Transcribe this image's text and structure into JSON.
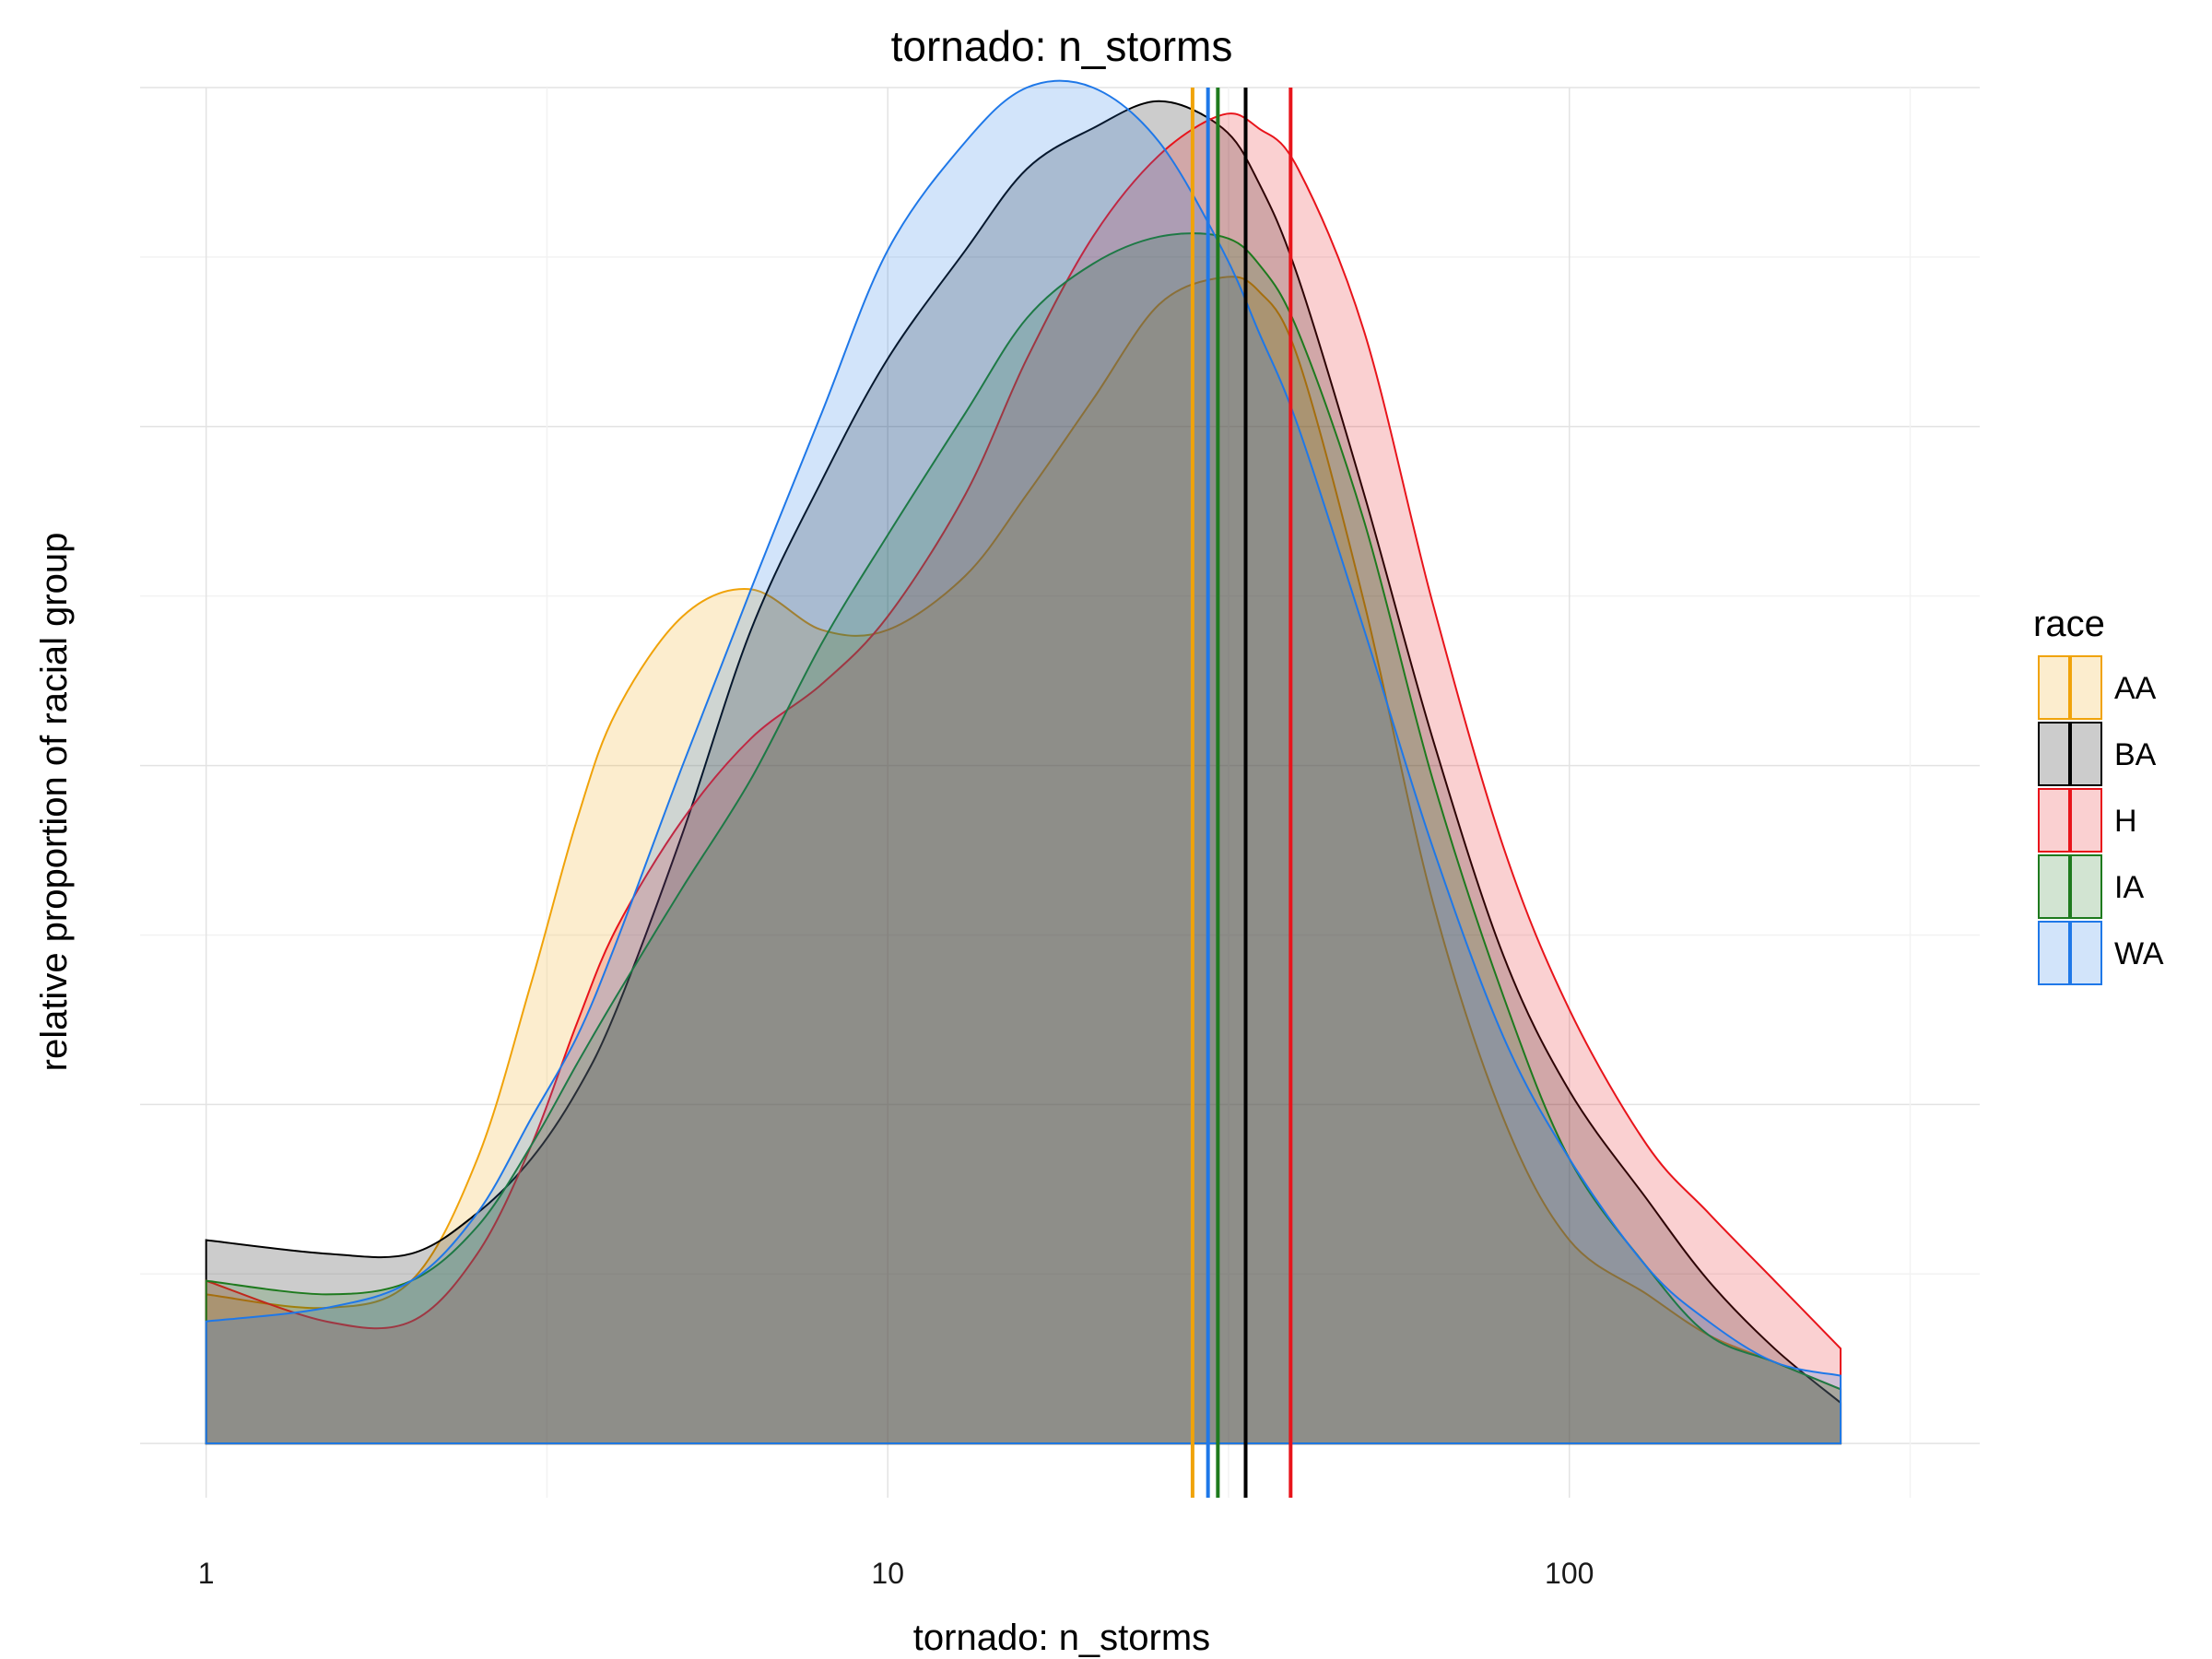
{
  "chart_data": {
    "type": "area",
    "title": "tornado: n_storms",
    "xlabel": "tornado: n_storms",
    "ylabel": "relative proportion of racial group",
    "x_scale": "log10",
    "xlim": [
      0.8,
      400
    ],
    "ylim": [
      -0.04,
      1.0
    ],
    "x_ticks": [
      1,
      10,
      100
    ],
    "x_tick_labels": [
      "1",
      "10",
      "100"
    ],
    "y_tick_labels_shown": false,
    "grid": true,
    "legend": {
      "title": "race",
      "placement": "right"
    },
    "series": [
      {
        "name": "AA",
        "color": "#F0A30A",
        "mean_line_x": 28.0,
        "x": [
          1,
          1.5,
          2.0,
          2.5,
          3.0,
          3.5,
          4.0,
          5.0,
          6.3,
          8.0,
          10,
          13,
          16,
          20,
          25,
          31,
          35,
          40,
          50,
          63,
          80,
          100,
          130,
          160,
          200,
          250
        ],
        "y": [
          0.11,
          0.1,
          0.12,
          0.21,
          0.34,
          0.46,
          0.54,
          0.61,
          0.63,
          0.6,
          0.6,
          0.64,
          0.7,
          0.77,
          0.84,
          0.86,
          0.85,
          0.8,
          0.62,
          0.4,
          0.24,
          0.15,
          0.11,
          0.08,
          0.06,
          0.04
        ]
      },
      {
        "name": "BA",
        "color": "#000000",
        "mean_line_x": 33.5,
        "x": [
          1,
          1.5,
          2.0,
          2.5,
          3.0,
          3.5,
          4.0,
          5.0,
          6.3,
          8.0,
          10,
          13,
          16,
          20,
          25,
          31,
          35,
          40,
          50,
          63,
          80,
          100,
          130,
          160,
          200,
          250
        ],
        "y": [
          0.15,
          0.14,
          0.14,
          0.17,
          0.21,
          0.26,
          0.32,
          0.45,
          0.6,
          0.71,
          0.8,
          0.88,
          0.94,
          0.97,
          0.99,
          0.97,
          0.93,
          0.86,
          0.7,
          0.52,
          0.36,
          0.26,
          0.18,
          0.12,
          0.07,
          0.03
        ]
      },
      {
        "name": "H",
        "color": "#E8141B",
        "mean_line_x": 39.0,
        "x": [
          1,
          1.5,
          2.0,
          2.5,
          3.0,
          3.5,
          4.0,
          5.0,
          6.3,
          8.0,
          10,
          13,
          16,
          20,
          25,
          31,
          35,
          40,
          50,
          63,
          80,
          100,
          130,
          160,
          200,
          250
        ],
        "y": [
          0.12,
          0.09,
          0.09,
          0.14,
          0.22,
          0.31,
          0.38,
          0.46,
          0.52,
          0.56,
          0.61,
          0.7,
          0.8,
          0.89,
          0.95,
          0.98,
          0.97,
          0.94,
          0.82,
          0.62,
          0.44,
          0.32,
          0.22,
          0.17,
          0.12,
          0.07
        ]
      },
      {
        "name": "IA",
        "color": "#1E7A1E",
        "mean_line_x": 30.5,
        "x": [
          1,
          1.5,
          2.0,
          2.5,
          3.0,
          3.5,
          4.0,
          5.0,
          6.3,
          8.0,
          10,
          13,
          16,
          20,
          25,
          31,
          35,
          40,
          50,
          63,
          80,
          100,
          130,
          160,
          200,
          250
        ],
        "y": [
          0.12,
          0.11,
          0.12,
          0.16,
          0.22,
          0.28,
          0.33,
          0.41,
          0.49,
          0.59,
          0.67,
          0.76,
          0.83,
          0.87,
          0.89,
          0.89,
          0.87,
          0.82,
          0.68,
          0.49,
          0.33,
          0.21,
          0.13,
          0.08,
          0.06,
          0.04
        ]
      },
      {
        "name": "WA",
        "color": "#1F78E8",
        "mean_line_x": 29.5,
        "x": [
          1,
          1.5,
          2.0,
          2.5,
          3.0,
          3.5,
          4.0,
          5.0,
          6.3,
          8.0,
          10,
          13,
          16,
          20,
          25,
          31,
          35,
          40,
          50,
          63,
          80,
          100,
          130,
          160,
          200,
          250
        ],
        "y": [
          0.09,
          0.1,
          0.12,
          0.17,
          0.24,
          0.3,
          0.37,
          0.5,
          0.63,
          0.76,
          0.88,
          0.96,
          1.0,
          1.0,
          0.96,
          0.88,
          0.82,
          0.75,
          0.6,
          0.44,
          0.3,
          0.21,
          0.13,
          0.09,
          0.06,
          0.05
        ]
      }
    ]
  }
}
